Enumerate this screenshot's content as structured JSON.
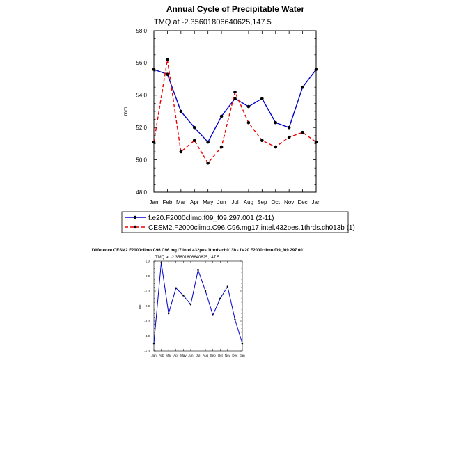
{
  "chart_data": [
    {
      "type": "line",
      "title": "Annual Cycle of Precipitable Water",
      "subtitle": "TMQ at -2.35601806640625,147.5",
      "ylabel": "mm",
      "ylim": [
        48.0,
        58.0
      ],
      "yticks": [
        "48.0",
        "50.0",
        "52.0",
        "54.0",
        "56.0",
        "58.0"
      ],
      "categories": [
        "Jan",
        "Feb",
        "Mar",
        "Apr",
        "May",
        "Jun",
        "Jul",
        "Aug",
        "Sep",
        "Oct",
        "Nov",
        "Dec",
        "Jan"
      ],
      "series": [
        {
          "name": "f.e20.F2000climo.f09_f09.297.001 (2-11)",
          "color": "#0000cc",
          "dash": "solid",
          "values": [
            55.6,
            55.3,
            53.0,
            52.0,
            51.1,
            52.7,
            53.8,
            53.3,
            53.8,
            52.3,
            52.0,
            54.5,
            55.6
          ]
        },
        {
          "name": "CESM2.F2000climo.C96.C96.mg17.intel.432pes.1thrds.ch013b (1)",
          "color": "#ee0000",
          "dash": "dashed",
          "values": [
            51.1,
            56.2,
            50.5,
            51.2,
            49.8,
            50.8,
            54.2,
            52.3,
            51.2,
            50.8,
            51.4,
            51.7,
            51.1
          ]
        }
      ],
      "legend": "bottom",
      "grid": false
    },
    {
      "type": "line",
      "title": "Difference CESM2.F2000climo.C96.C96.mg17.intel.432pes.1thrds.ch013b - f.e20.F2000climo.f09_f09.297.001",
      "subtitle": "TMQ at -2.35601806640625,147.5",
      "ylabel": "mm",
      "ylim": [
        -5.0,
        1.0
      ],
      "yticks": [
        "-5.0",
        "-4.0",
        "-3.0",
        "-2.0",
        "-1.0",
        "0.0",
        "1.0"
      ],
      "categories": [
        "Jan",
        "Feb",
        "Mar",
        "Apr",
        "May",
        "Jun",
        "Jul",
        "Aug",
        "Sep",
        "Oct",
        "Nov",
        "Dec",
        "Jan"
      ],
      "series": [
        {
          "color": "#0000cc",
          "values": [
            -4.5,
            0.9,
            -2.5,
            -0.8,
            -1.3,
            -1.9,
            0.4,
            -1.0,
            -2.6,
            -1.5,
            -0.7,
            -2.9,
            -4.5
          ]
        }
      ],
      "legend": "none",
      "grid": false
    }
  ]
}
